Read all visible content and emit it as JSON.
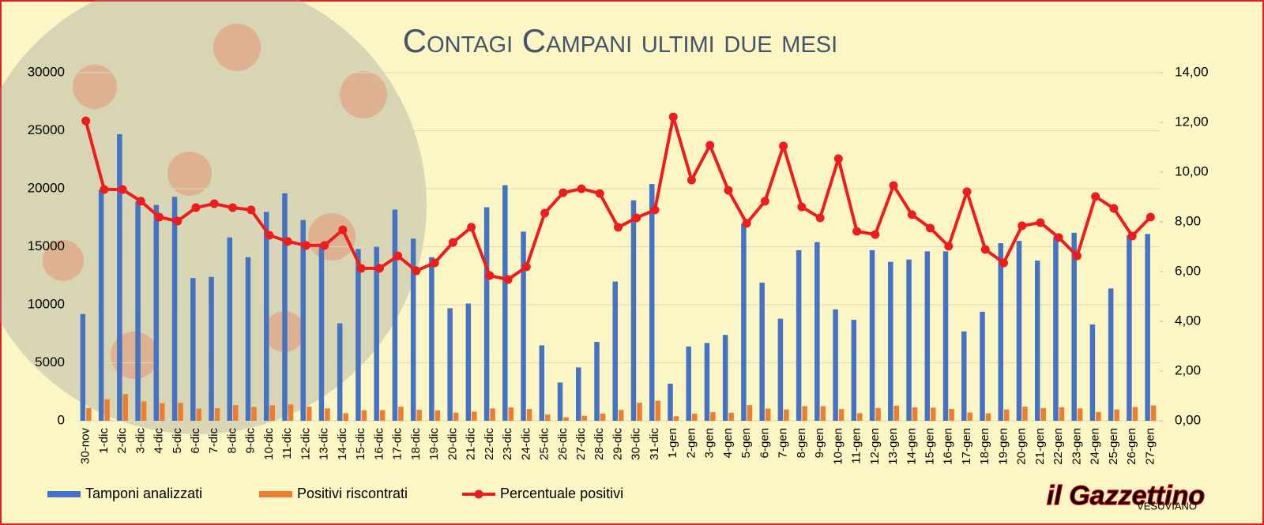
{
  "chart_data": {
    "type": "bar-line",
    "title": "Contagi Campani ultimi due mesi",
    "categories": [
      "30-nov",
      "1-dic",
      "2-dic",
      "3-dic",
      "4-dic",
      "5-dic",
      "6-dic",
      "7-dic",
      "8-dic",
      "9-dic",
      "10-dic",
      "11-dic",
      "12-dic",
      "13-dic",
      "14-dic",
      "15-dic",
      "16-dic",
      "17-dic",
      "18-dic",
      "19-dic",
      "20-dic",
      "21-dic",
      "22-dic",
      "23-dic",
      "24-dic",
      "25-dic",
      "26-dic",
      "27-dic",
      "28-dic",
      "29-dic",
      "30-dic",
      "31-dic",
      "1-gen",
      "2-gen",
      "3-gen",
      "4-gen",
      "5-gen",
      "6-gen",
      "7-gen",
      "8-gen",
      "9-gen",
      "10-gen",
      "11-gen",
      "12-gen",
      "13-gen",
      "14-gen",
      "15-gen",
      "16-gen",
      "17-gen",
      "18-gen",
      "19-gen",
      "20-gen",
      "21-gen",
      "22-gen",
      "23-gen",
      "24-gen",
      "25-gen",
      "26-gen",
      "27-gen"
    ],
    "series": [
      {
        "name": "Tamponi analizzati",
        "color": "#4472c4",
        "kind": "bar",
        "values": [
          9200,
          19900,
          24700,
          18900,
          18600,
          19300,
          12300,
          12400,
          15800,
          14100,
          18000,
          19600,
          17300,
          15200,
          8400,
          14800,
          15000,
          18200,
          15700,
          14100,
          9700,
          10100,
          18400,
          20300,
          16300,
          6500,
          3300,
          4600,
          6800,
          12000,
          19000,
          20400,
          3200,
          6400,
          6700,
          7400,
          17000,
          11900,
          8800,
          14700,
          15400,
          9600,
          8700,
          14700,
          13700,
          13900,
          14600,
          14600,
          7700,
          9400,
          15300,
          15500,
          13800,
          15900,
          16200,
          8300,
          11400,
          16000,
          16100
        ]
      },
      {
        "name": "Positivi riscontrati",
        "color": "#ed7d31",
        "kind": "bar",
        "values": [
          1110,
          1850,
          2300,
          1670,
          1520,
          1550,
          1050,
          1080,
          1350,
          1200,
          1340,
          1410,
          1220,
          1070,
          650,
          910,
          920,
          1210,
          950,
          900,
          700,
          790,
          1070,
          1150,
          1010,
          540,
          300,
          430,
          620,
          930,
          1550,
          1730,
          390,
          620,
          740,
          690,
          1350,
          1050,
          970,
          1260,
          1260,
          1010,
          660,
          1100,
          1300,
          1150,
          1130,
          1020,
          710,
          650,
          970,
          1220,
          1100,
          1170,
          1070,
          750,
          970,
          1190,
          1320
        ]
      },
      {
        "name": "Percentuale positivi",
        "color": "#ee1c1c",
        "kind": "line",
        "axis": "y2",
        "values": [
          12.06,
          9.3,
          9.3,
          8.83,
          8.19,
          8.03,
          8.57,
          8.73,
          8.57,
          8.48,
          7.46,
          7.21,
          7.05,
          7.05,
          7.68,
          6.13,
          6.13,
          6.63,
          6.03,
          6.35,
          7.17,
          7.78,
          5.84,
          5.68,
          6.19,
          8.35,
          9.17,
          9.33,
          9.14,
          7.78,
          8.16,
          8.48,
          12.22,
          9.68,
          11.08,
          9.27,
          7.94,
          8.83,
          11.05,
          8.6,
          8.16,
          10.54,
          7.62,
          7.49,
          9.46,
          8.29,
          7.75,
          7.02,
          9.21,
          6.89,
          6.35,
          7.84,
          7.97,
          7.37,
          6.63,
          9.02,
          8.54,
          7.43,
          8.19
        ]
      }
    ],
    "ylim": [
      0,
      30000
    ],
    "yticks": [
      0,
      5000,
      10000,
      15000,
      20000,
      25000,
      30000
    ],
    "y2lim": [
      0,
      14
    ],
    "y2ticks": [
      {
        "value": 0,
        "label": "0,00"
      },
      {
        "value": 2,
        "label": "2,00"
      },
      {
        "value": 4,
        "label": "4,00"
      },
      {
        "value": 6,
        "label": "6,00"
      },
      {
        "value": 8,
        "label": "8,00"
      },
      {
        "value": 10,
        "label": "10,00"
      },
      {
        "value": 12,
        "label": "12,00"
      },
      {
        "value": 14,
        "label": "14,00"
      }
    ],
    "grid": true,
    "legend": "bottom"
  },
  "logo": {
    "name": "il Gazzettino",
    "subtitle": "VESUVIANO"
  }
}
